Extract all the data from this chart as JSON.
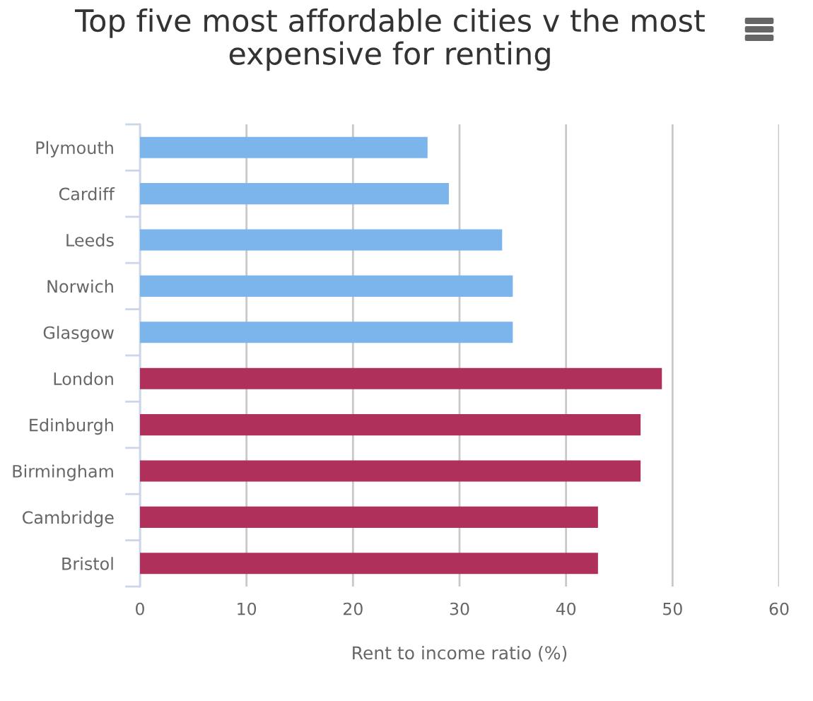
{
  "chart_data": {
    "type": "bar",
    "orientation": "horizontal",
    "title": "Top five most affordable cities v the most expensive for renting",
    "xlabel": "Rent to income ratio (%)",
    "categories": [
      "Plymouth",
      "Cardiff",
      "Leeds",
      "Norwich",
      "Glasgow",
      "London",
      "Edinburgh",
      "Birmingham",
      "Cambridge",
      "Bristol"
    ],
    "values": [
      27,
      29,
      34,
      35,
      35,
      49,
      47,
      47,
      43,
      43
    ],
    "colors": [
      "#7cb5ec",
      "#7cb5ec",
      "#7cb5ec",
      "#7cb5ec",
      "#7cb5ec",
      "#b0305c",
      "#b0305c",
      "#b0305c",
      "#b0305c",
      "#b0305c"
    ],
    "xlim": [
      0,
      60
    ],
    "xticks": [
      0,
      10,
      20,
      30,
      40,
      50,
      60
    ],
    "grid": "x"
  }
}
